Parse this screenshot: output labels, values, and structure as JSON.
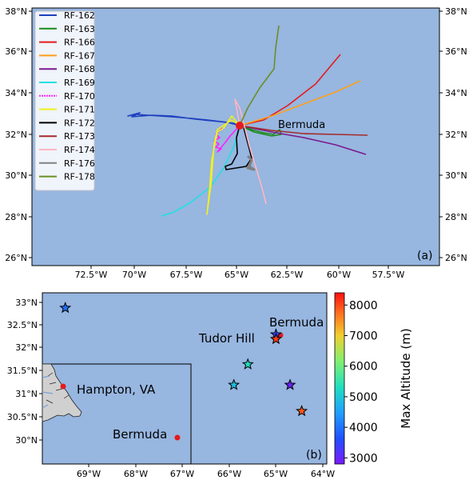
{
  "panel_a": {
    "label": "(a)",
    "lat_ticks": [
      "38°N",
      "36°N",
      "34°N",
      "32°N",
      "30°N",
      "28°N",
      "26°N"
    ],
    "lon_ticks": [
      "72.5°W",
      "70°W",
      "67.5°W",
      "65°W",
      "62.5°W",
      "60°W",
      "57.5°W"
    ],
    "bermuda_label": "Bermuda",
    "ocean_color": "#97b6e0",
    "legend": [
      {
        "name": "RF-162",
        "color": "#1f3fbf"
      },
      {
        "name": "RF-163",
        "color": "#1a8a1a"
      },
      {
        "name": "RF-166",
        "color": "#e41a1c"
      },
      {
        "name": "RF-167",
        "color": "#ff9f1a"
      },
      {
        "name": "RF-168",
        "color": "#7b1a8c"
      },
      {
        "name": "RF-169",
        "color": "#22e0e0"
      },
      {
        "name": "RF-170",
        "color": "#ff22ff"
      },
      {
        "name": "RF-171",
        "color": "#f0f020"
      },
      {
        "name": "RF-172",
        "color": "#000000"
      },
      {
        "name": "RF-173",
        "color": "#a52a2a"
      },
      {
        "name": "RF-174",
        "color": "#ffb6c1"
      },
      {
        "name": "RF-176",
        "color": "#808080"
      },
      {
        "name": "RF-178",
        "color": "#6b8e23"
      }
    ]
  },
  "panel_b": {
    "label": "(b)",
    "lat_ticks": [
      "33°N",
      "32.5°N",
      "32°N",
      "31.5°N",
      "31°N",
      "30.5°N",
      "30°N"
    ],
    "lon_ticks": [
      "69°W",
      "68°W",
      "67°W",
      "66°W",
      "65°W",
      "64°W"
    ],
    "bermuda_label": "Bermuda",
    "tudor_label": "Tudor Hill",
    "inset_hampton": "Hampton, VA",
    "inset_bermuda": "Bermuda",
    "colorbar_label": "Max Altitude (m)",
    "colorbar_ticks": [
      "8000",
      "7000",
      "6000",
      "5000",
      "4000",
      "3000"
    ],
    "stars": [
      {
        "lon": -69.5,
        "lat": 32.88,
        "alt": 3950
      },
      {
        "lon": -65.6,
        "lat": 31.65,
        "alt": 5300
      },
      {
        "lon": -65.9,
        "lat": 31.2,
        "alt": 4900
      },
      {
        "lon": -64.7,
        "lat": 31.2,
        "alt": 2950
      },
      {
        "lon": -64.45,
        "lat": 30.63,
        "alt": 7900
      },
      {
        "lon": -65.0,
        "lat": 32.3,
        "alt": 3500
      },
      {
        "lon": -65.0,
        "lat": 32.2,
        "alt": 8100
      }
    ]
  }
}
